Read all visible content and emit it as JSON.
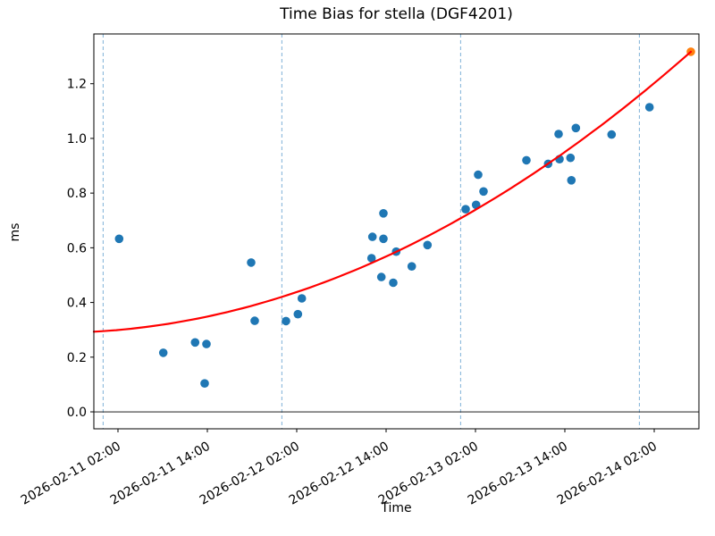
{
  "chart_data": {
    "type": "scatter",
    "title": "Time Bias for stella (DGF4201)",
    "xlabel": "Time",
    "ylabel": "ms",
    "xlim_hours": [
      -1.24,
      80.0
    ],
    "ylim": [
      -0.062,
      1.382
    ],
    "grid": "vertical dashed lines at midnight of each day",
    "legend_position": "none",
    "x_ticks": [
      {
        "t": 2,
        "label": "2026-02-11 02:00"
      },
      {
        "t": 14,
        "label": "2026-02-11 14:00"
      },
      {
        "t": 26,
        "label": "2026-02-12 02:00"
      },
      {
        "t": 38,
        "label": "2026-02-12 14:00"
      },
      {
        "t": 50,
        "label": "2026-02-13 02:00"
      },
      {
        "t": 62,
        "label": "2026-02-13 14:00"
      },
      {
        "t": 74,
        "label": "2026-02-14 02:00"
      }
    ],
    "y_ticks": [
      0.0,
      0.2,
      0.4,
      0.6,
      0.8,
      1.0,
      1.2
    ],
    "day_gridlines_hours": [
      0,
      24,
      48,
      72
    ],
    "zero_line": 0.0,
    "colors": {
      "points": "#1f77b4",
      "forecast_point": "#ff7f0e",
      "fit_line": "#ff0000",
      "gridline": "#6fa8d2",
      "frame": "#000000"
    },
    "series": [
      {
        "name": "measured-bias",
        "marker": "circle",
        "color": "#1f77b4",
        "points": [
          {
            "time": "2026-02-11 02:10",
            "t": 2.16,
            "ms": 0.633
          },
          {
            "time": "2026-02-11 08:05",
            "t": 8.08,
            "ms": 0.216
          },
          {
            "time": "2026-02-11 12:20",
            "t": 12.36,
            "ms": 0.254
          },
          {
            "time": "2026-02-11 13:40",
            "t": 13.64,
            "ms": 0.104
          },
          {
            "time": "2026-02-11 13:55",
            "t": 13.88,
            "ms": 0.248
          },
          {
            "time": "2026-02-11 19:55",
            "t": 19.88,
            "ms": 0.546
          },
          {
            "time": "2026-02-11 20:20",
            "t": 20.36,
            "ms": 0.333
          },
          {
            "time": "2026-02-12 00:35",
            "t": 24.56,
            "ms": 0.332
          },
          {
            "time": "2026-02-12 02:10",
            "t": 26.16,
            "ms": 0.357
          },
          {
            "time": "2026-02-12 02:40",
            "t": 26.68,
            "ms": 0.415
          },
          {
            "time": "2026-02-12 12:00",
            "t": 36.04,
            "ms": 0.562
          },
          {
            "time": "2026-02-12 12:10",
            "t": 36.16,
            "ms": 0.64
          },
          {
            "time": "2026-02-12 13:20",
            "t": 37.36,
            "ms": 0.493
          },
          {
            "time": "2026-02-12 13:40",
            "t": 37.64,
            "ms": 0.726
          },
          {
            "time": "2026-02-12 13:40",
            "t": 37.64,
            "ms": 0.633
          },
          {
            "time": "2026-02-12 15:00",
            "t": 38.96,
            "ms": 0.472
          },
          {
            "time": "2026-02-12 15:20",
            "t": 39.36,
            "ms": 0.586
          },
          {
            "time": "2026-02-12 17:25",
            "t": 41.44,
            "ms": 0.532
          },
          {
            "time": "2026-02-12 19:35",
            "t": 43.56,
            "ms": 0.61
          },
          {
            "time": "2026-02-13 00:40",
            "t": 48.68,
            "ms": 0.741
          },
          {
            "time": "2026-02-13 02:05",
            "t": 50.08,
            "ms": 0.757
          },
          {
            "time": "2026-02-13 02:20",
            "t": 50.36,
            "ms": 0.867
          },
          {
            "time": "2026-02-13 03:05",
            "t": 51.08,
            "ms": 0.806
          },
          {
            "time": "2026-02-13 08:50",
            "t": 56.84,
            "ms": 0.92
          },
          {
            "time": "2026-02-13 11:45",
            "t": 59.76,
            "ms": 0.907
          },
          {
            "time": "2026-02-13 13:10",
            "t": 61.16,
            "ms": 1.016
          },
          {
            "time": "2026-02-13 13:15",
            "t": 61.28,
            "ms": 0.924
          },
          {
            "time": "2026-02-13 14:45",
            "t": 62.76,
            "ms": 0.929
          },
          {
            "time": "2026-02-13 14:55",
            "t": 62.88,
            "ms": 0.847
          },
          {
            "time": "2026-02-13 15:30",
            "t": 63.48,
            "ms": 1.038
          },
          {
            "time": "2026-02-13 20:15",
            "t": 68.28,
            "ms": 1.014
          },
          {
            "time": "2026-02-14 01:20",
            "t": 73.36,
            "ms": 1.114
          }
        ]
      },
      {
        "name": "extrapolated-bias",
        "marker": "circle",
        "color": "#ff7f0e",
        "points": [
          {
            "time": "2026-02-14 06:55",
            "t": 78.92,
            "ms": 1.317
          }
        ]
      },
      {
        "name": "quadratic-fit",
        "marker": "line",
        "color": "#ff0000",
        "poly_coeffs_t": [
          0.29512,
          0.0018362,
          0.00014081
        ],
        "t_range": [
          -1.24,
          78.92
        ]
      }
    ]
  }
}
